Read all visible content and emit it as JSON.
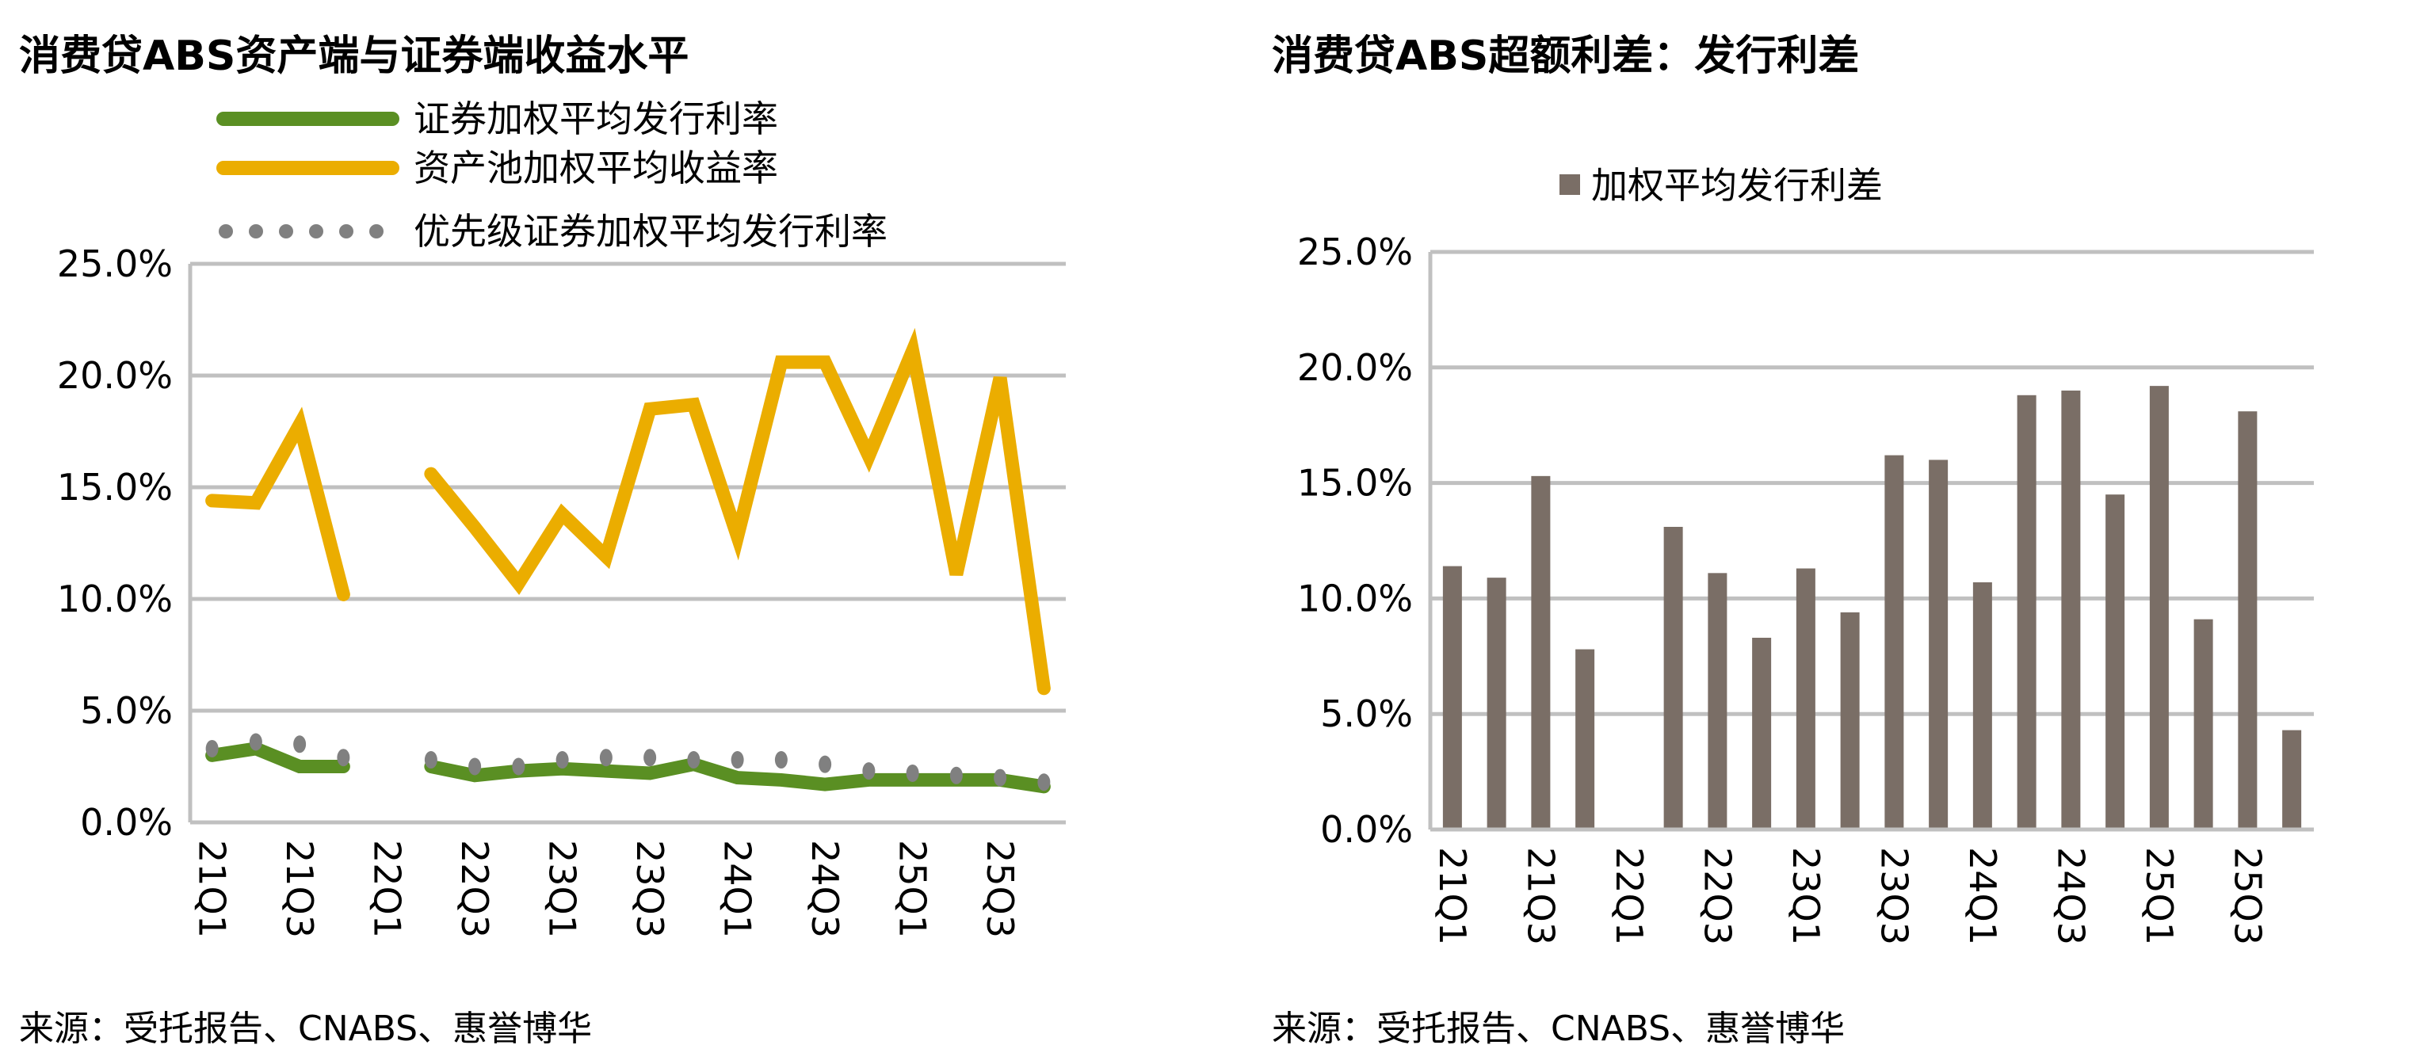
{
  "left_title": "消费贷ABS资产端与证券端收益水平",
  "right_title": "消费贷ABS超额利差：发行利差",
  "left_source": "来源：受托报告、CNABS、惠誉博华",
  "right_source": "来源：受托报告、CNABS、惠誉博华",
  "chart_data": [
    {
      "type": "line",
      "title": "消费贷ABS资产端与证券端收益水平",
      "categories": [
        "21Q1",
        "21Q2",
        "21Q3",
        "21Q4",
        "22Q1",
        "22Q2",
        "22Q3",
        "22Q4",
        "23Q1",
        "23Q2",
        "23Q3",
        "23Q4",
        "24Q1",
        "24Q2",
        "24Q3",
        "24Q4",
        "25Q1",
        "25Q2",
        "25Q3",
        "25Q4"
      ],
      "tick_labels": [
        "21Q1",
        "21Q3",
        "22Q1",
        "22Q3",
        "23Q1",
        "23Q3",
        "24Q1",
        "24Q3",
        "25Q1",
        "25Q3"
      ],
      "y_ticks": [
        "0.0%",
        "5.0%",
        "10.0%",
        "15.0%",
        "20.0%",
        "25.0%"
      ],
      "ylim": [
        0,
        25
      ],
      "legend": "top",
      "series": [
        {
          "name": "证券加权平均发行利率",
          "color": "#5a8f23",
          "style": "solid",
          "values": [
            3.0,
            3.3,
            2.5,
            2.5,
            null,
            2.5,
            2.1,
            2.3,
            2.4,
            2.3,
            2.2,
            2.6,
            2.0,
            1.9,
            1.7,
            1.9,
            1.9,
            1.9,
            1.9,
            1.6
          ]
        },
        {
          "name": "资产池加权平均收益率",
          "color": "#ebad00",
          "style": "solid",
          "values": [
            14.4,
            14.3,
            17.8,
            10.2,
            null,
            15.6,
            13.2,
            10.7,
            13.8,
            11.9,
            18.5,
            18.7,
            12.8,
            20.6,
            20.6,
            16.4,
            21.1,
            11.1,
            19.9,
            6.0
          ]
        },
        {
          "name": "优先级证券加权平均发行利率",
          "color": "#808080",
          "style": "dotted",
          "values": [
            3.3,
            3.6,
            3.5,
            2.9,
            null,
            2.8,
            2.5,
            2.5,
            2.8,
            2.9,
            2.9,
            2.8,
            2.8,
            2.8,
            2.6,
            2.3,
            2.2,
            2.1,
            2.0,
            1.8
          ]
        }
      ]
    },
    {
      "type": "bar",
      "title": "消费贷ABS超额利差：发行利差",
      "categories": [
        "21Q1",
        "21Q2",
        "21Q3",
        "21Q4",
        "22Q1",
        "22Q2",
        "22Q3",
        "22Q4",
        "23Q1",
        "23Q2",
        "23Q3",
        "23Q4",
        "24Q1",
        "24Q2",
        "24Q3",
        "24Q4",
        "25Q1",
        "25Q2",
        "25Q3",
        "25Q4"
      ],
      "tick_labels": [
        "21Q1",
        "21Q3",
        "22Q1",
        "22Q3",
        "23Q1",
        "23Q3",
        "24Q1",
        "24Q3",
        "25Q1",
        "25Q3"
      ],
      "y_ticks": [
        "0.0%",
        "5.0%",
        "10.0%",
        "15.0%",
        "20.0%",
        "25.0%"
      ],
      "ylim": [
        0,
        25
      ],
      "legend": "top",
      "series": [
        {
          "name": "加权平均发行利差",
          "color": "#7a6e66",
          "values": [
            11.4,
            10.9,
            15.3,
            7.8,
            null,
            13.1,
            11.1,
            8.3,
            11.3,
            9.4,
            16.2,
            16.0,
            10.7,
            18.8,
            19.0,
            14.5,
            19.2,
            9.1,
            18.1,
            4.3
          ]
        }
      ]
    }
  ]
}
